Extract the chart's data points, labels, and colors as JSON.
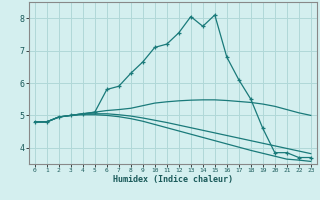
{
  "title": "",
  "xlabel": "Humidex (Indice chaleur)",
  "background_color": "#d4efef",
  "grid_color": "#b0d8d8",
  "line_color": "#1a7a7a",
  "x_ticks": [
    0,
    1,
    2,
    3,
    4,
    5,
    6,
    7,
    8,
    9,
    10,
    11,
    12,
    13,
    14,
    15,
    16,
    17,
    18,
    19,
    20,
    21,
    22,
    23
  ],
  "y_ticks": [
    4,
    5,
    6,
    7,
    8
  ],
  "ylim": [
    3.5,
    8.5
  ],
  "xlim": [
    -0.5,
    23.5
  ],
  "curves": [
    {
      "x": [
        0,
        1,
        2,
        3,
        4,
        5,
        6,
        7,
        8,
        9,
        10,
        11,
        12,
        13,
        14,
        15,
        16,
        17,
        18,
        19,
        20,
        21,
        22,
        23
      ],
      "y": [
        4.8,
        4.8,
        4.95,
        5.0,
        5.05,
        5.1,
        5.8,
        5.9,
        6.3,
        6.65,
        7.1,
        7.2,
        7.55,
        8.05,
        7.75,
        8.1,
        6.8,
        6.1,
        5.5,
        4.6,
        3.85,
        3.85,
        3.7,
        3.7
      ],
      "marker": "+"
    },
    {
      "x": [
        0,
        1,
        2,
        3,
        4,
        5,
        6,
        7,
        8,
        9,
        10,
        11,
        12,
        13,
        14,
        15,
        16,
        17,
        18,
        19,
        20,
        21,
        22,
        23
      ],
      "y": [
        4.8,
        4.8,
        4.95,
        5.0,
        5.05,
        5.1,
        5.15,
        5.18,
        5.22,
        5.3,
        5.38,
        5.42,
        5.45,
        5.47,
        5.48,
        5.48,
        5.46,
        5.43,
        5.4,
        5.35,
        5.28,
        5.18,
        5.08,
        5.0
      ],
      "marker": null
    },
    {
      "x": [
        0,
        1,
        2,
        3,
        4,
        5,
        6,
        7,
        8,
        9,
        10,
        11,
        12,
        13,
        14,
        15,
        16,
        17,
        18,
        19,
        20,
        21,
        22,
        23
      ],
      "y": [
        4.8,
        4.8,
        4.95,
        5.0,
        5.05,
        5.05,
        5.05,
        5.02,
        4.98,
        4.92,
        4.85,
        4.78,
        4.7,
        4.62,
        4.54,
        4.46,
        4.38,
        4.3,
        4.22,
        4.14,
        4.06,
        3.98,
        3.9,
        3.82
      ],
      "marker": null
    },
    {
      "x": [
        0,
        1,
        2,
        3,
        4,
        5,
        6,
        7,
        8,
        9,
        10,
        11,
        12,
        13,
        14,
        15,
        16,
        17,
        18,
        19,
        20,
        21,
        22,
        23
      ],
      "y": [
        4.8,
        4.8,
        4.95,
        5.0,
        5.02,
        5.02,
        5.0,
        4.96,
        4.9,
        4.82,
        4.72,
        4.62,
        4.52,
        4.42,
        4.32,
        4.22,
        4.12,
        4.02,
        3.92,
        3.83,
        3.74,
        3.65,
        3.62,
        3.58
      ],
      "marker": null
    }
  ]
}
